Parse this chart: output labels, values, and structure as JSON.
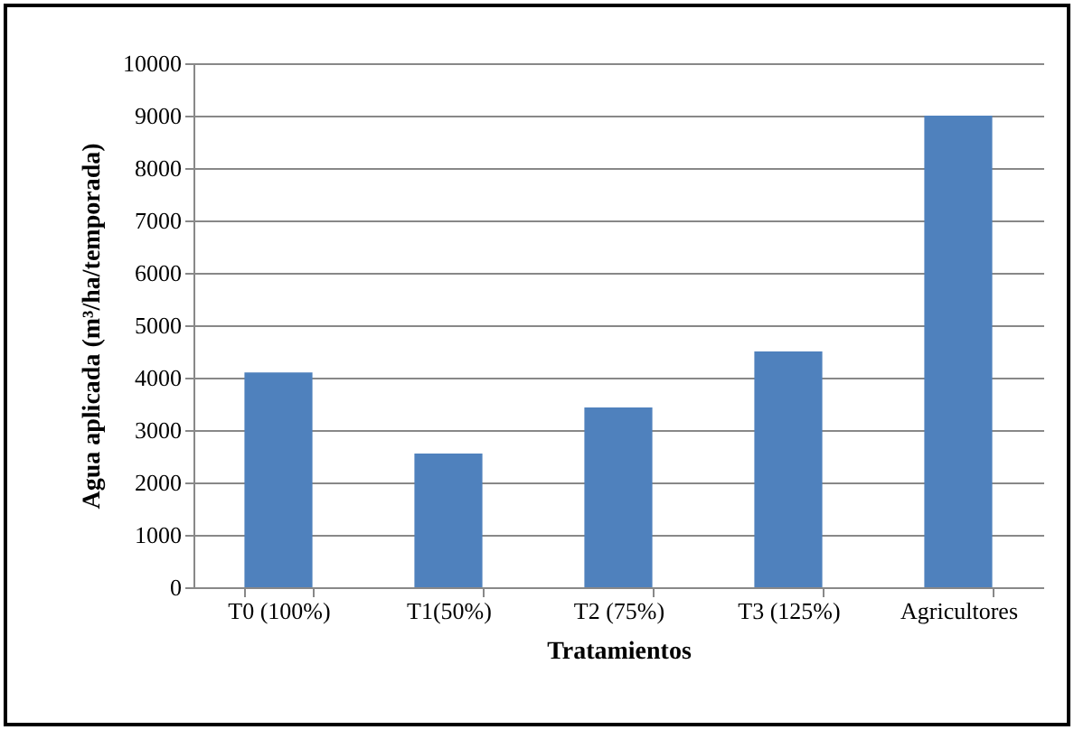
{
  "chart_data": {
    "type": "bar",
    "xlabel": "Tratamientos",
    "ylabel": "Agua aplicada (m³/ha/temporada)",
    "categories": [
      "T0 (100%)",
      "T1(50%)",
      "T2 (75%)",
      "T3 (125%)",
      "Agricultores"
    ],
    "values": [
      4100,
      2550,
      3430,
      4500,
      9000
    ],
    "color": "#4f81bd",
    "ylim": [
      0,
      10000
    ],
    "yticks": [
      0,
      1000,
      2000,
      3000,
      4000,
      5000,
      6000,
      7000,
      8000,
      9000,
      10000
    ],
    "grid": "y"
  }
}
